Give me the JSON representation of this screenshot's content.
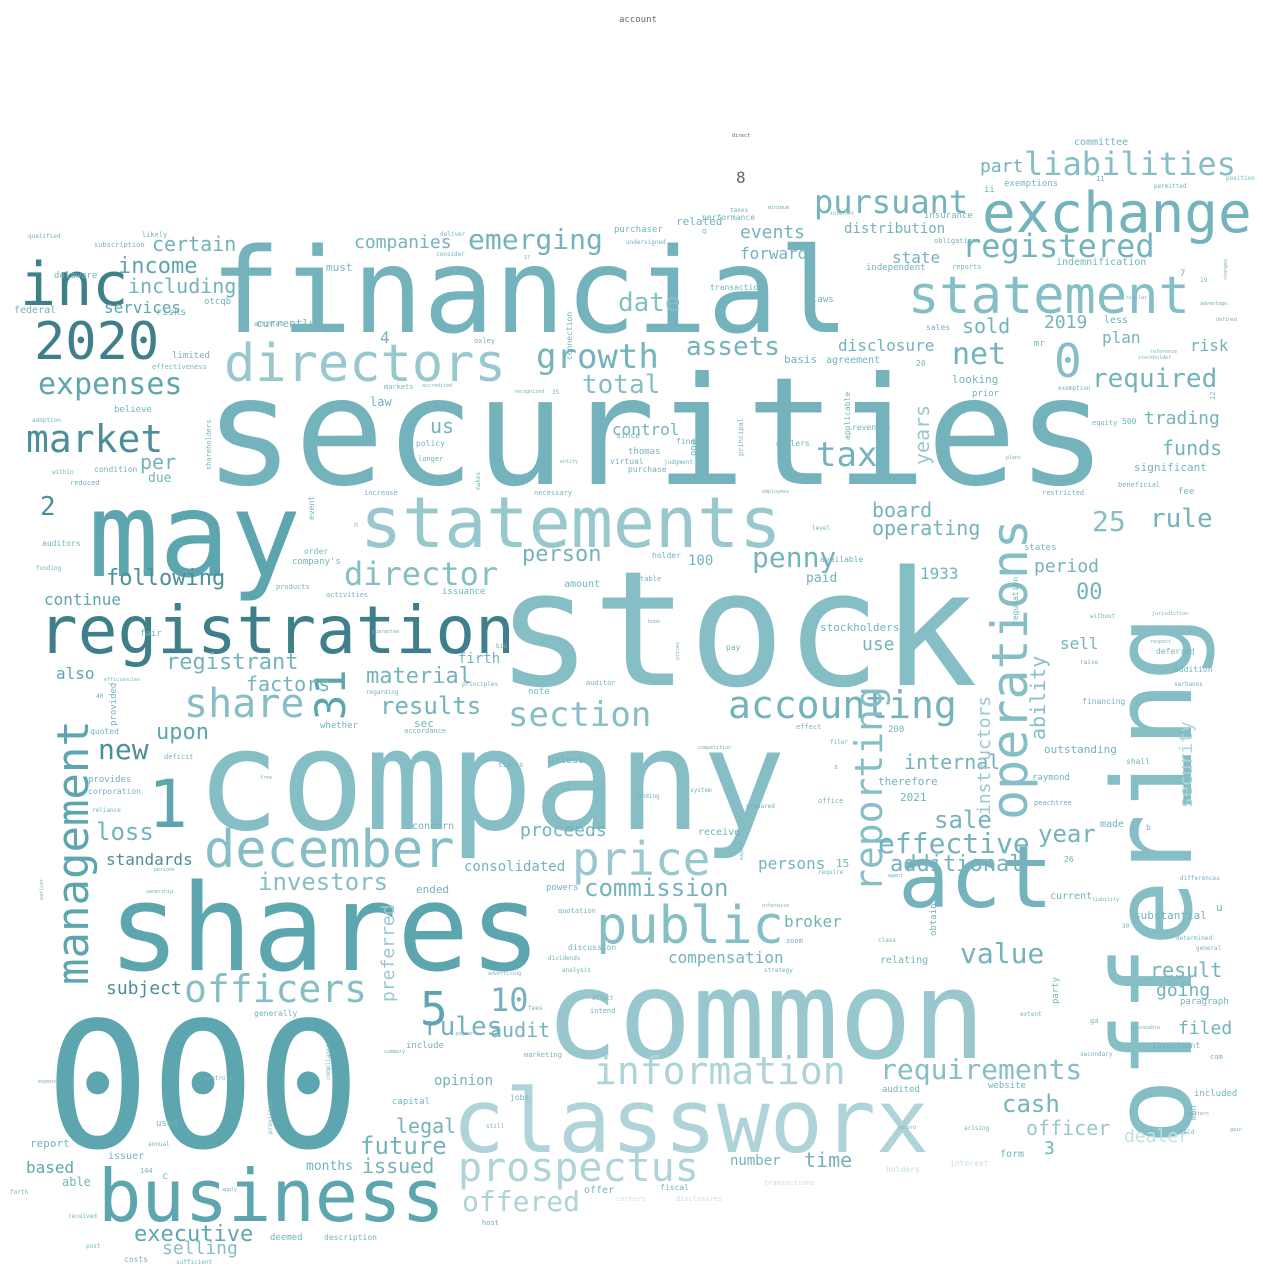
{
  "colors": {
    "background": "#ffffff",
    "palette": [
      "#3f7f8a",
      "#4c8f9b",
      "#5ea6af",
      "#74b3bc",
      "#86bec6",
      "#98c8ce",
      "#aed3d8",
      "#c4dfe2"
    ]
  },
  "words": {
    "securities": "securities",
    "stock": "stock",
    "company": "company",
    "financial": "financial",
    "shares": "shares",
    "common": "common",
    "n000": "000",
    "may": "may",
    "offering": "offering",
    "classworx": "classworx",
    "statements": "statements",
    "registration": "registration",
    "business": "business",
    "act": "act",
    "exchange": "exchange",
    "statement": "statement",
    "directors": "directors",
    "public": "public",
    "december": "december",
    "prospectus": "prospectus",
    "price": "price",
    "information": "information",
    "management": "management",
    "accounting": "accounting",
    "operations": "operations",
    "n2020": "2020",
    "inc": "inc",
    "officers": "officers",
    "reporting": "reporting",
    "liabilities": "liabilities",
    "registered": "registered",
    "growth": "growth",
    "director": "director",
    "market": "market",
    "n1": "1",
    "n31": "31",
    "share": "share",
    "section": "section",
    "investors": "investors",
    "requirements": "requirements",
    "offered": "offered",
    "emerging": "emerging",
    "pursuant": "pursuant",
    "expenses": "expenses",
    "penny": "penny",
    "net": "net",
    "n0": "0",
    "required": "required",
    "assets": "assets",
    "effective": "effective",
    "rules": "rules",
    "tax": "tax",
    "value": "value",
    "rule": "rule",
    "n25": "25",
    "n5": "5",
    "n10": "10",
    "commission": "commission",
    "future": "future",
    "cash": "cash",
    "executive": "executive",
    "date": "date",
    "total": "total",
    "new": "new",
    "income": "income",
    "including": "including",
    "certain": "certain",
    "following": "following",
    "person": "person",
    "registrant": "registrant",
    "material": "material",
    "results": "results",
    "loss": "loss",
    "factors": "factors",
    "upon": "upon",
    "additional": "additional",
    "internal": "internal",
    "sale": "sale",
    "year": "year",
    "years": "years",
    "ability": "ability",
    "instructors": "instructors",
    "security": "security",
    "time": "time",
    "issued": "issued",
    "legal": "legal",
    "audit": "audit",
    "officer": "officer",
    "dealer": "dealer",
    "result": "result",
    "going": "going",
    "filed": "filed",
    "funds": "funds",
    "trading": "trading",
    "risk": "risk",
    "plan": "plan",
    "n2019": "2019",
    "sold": "sold",
    "part": "part",
    "state": "state",
    "disclosure": "disclosure",
    "events": "events",
    "forward": "forward",
    "distribution": "distribution",
    "companies": "companies",
    "board": "board",
    "operating": "operating",
    "n1933": "1933",
    "period": "period",
    "n00": "00",
    "sell": "sell",
    "use": "use",
    "stockholders": "stockholders",
    "firth": "firth",
    "paid": "paid",
    "n100": "100",
    "n2": "2",
    "continue": "continue",
    "also": "also",
    "per": "per",
    "us": "us",
    "control": "control",
    "n3": "3",
    "n4": "4",
    "n8": "8",
    "standards": "standards",
    "subject": "subject",
    "selling": "selling",
    "based": "based",
    "months": "months",
    "number": "number",
    "compensation": "compensation",
    "broker": "broker",
    "proceeds": "proceeds",
    "consolidated": "consolidated",
    "persons": "persons",
    "services": "services",
    "preferred": "preferred",
    "opinion": "opinion",
    "account": "account",
    "committee": "committee",
    "exemptions": "exemptions",
    "indemnification": "indemnification",
    "independent": "independent",
    "insurance": "insurance",
    "obligations": "obligations",
    "reports": "reports",
    "looking": "looking",
    "prior": "prior",
    "mr": "mr",
    "less": "less",
    "agreement": "agreement",
    "basis": "basis",
    "laws": "laws",
    "related": "related",
    "performance": "performance",
    "purchaser": "purchaser",
    "undersigned": "undersigned",
    "must": "must",
    "currently": "currently",
    "federal": "federal",
    "delaware": "delaware",
    "subscription": "subscription",
    "qualified": "qualified",
    "likely": "likely",
    "risks": "risks",
    "limited": "limited",
    "effectiveness": "effectiveness",
    "law": "law",
    "believe": "believe",
    "due": "due",
    "condition": "condition",
    "reduced": "reduced",
    "within": "within",
    "auditors": "auditors",
    "funding": "funding",
    "fair": "fair",
    "provided": "provided",
    "quoted": "quoted",
    "deficit": "deficit",
    "provides": "provides",
    "corporation": "corporation",
    "reliance": "reliance",
    "issuer": "issuer",
    "able": "able",
    "forth": "forth",
    "received": "received",
    "report": "report",
    "used": "used",
    "annual": "annual",
    "costs": "costs",
    "sufficient": "sufficient",
    "post": "post",
    "n144": "144",
    "c": "c",
    "generally": "generally",
    "deemed": "deemed",
    "description": "description",
    "include": "include",
    "capital": "capital",
    "jobs": "jobs",
    "sec": "sec",
    "accordance": "accordance",
    "whether": "whether",
    "regarding": "regarding",
    "note": "note",
    "auditor": "auditor",
    "amount": "amount",
    "issuance": "issuance",
    "activities": "activities",
    "products": "products",
    "order": "order",
    "companys": "company's",
    "event": "event",
    "unless": "unless",
    "stocks": "stocks",
    "concern": "concern",
    "ended": "ended",
    "powers": "powers",
    "quotation": "quotation",
    "discussion": "discussion",
    "dividends": "dividends",
    "analysis": "analysis",
    "marketing": "marketing",
    "holder": "holder",
    "table": "table",
    "receive": "receive",
    "therefore": "therefore",
    "n2021": "2021",
    "raymond": "raymond",
    "peachtree": "peachtree",
    "outstanding": "outstanding",
    "made": "made",
    "current": "current",
    "party": "party",
    "substantial": "substantial",
    "paragraph": "paragraph",
    "investment": "investment",
    "included": "included",
    "website": "website",
    "audited": "audited",
    "holders": "holders",
    "interest": "interest",
    "form": "form",
    "deferred": "deferred",
    "addition": "addition",
    "financing": "financing",
    "shall": "shall",
    "significant": "significant",
    "beneficial": "beneficial",
    "fee": "fee",
    "restricted": "restricted",
    "states": "states",
    "regulation": "regulation",
    "relating": "relating",
    "obtain": "obtain",
    "n15": "15",
    "n26": "26",
    "n200": "200",
    "n20": "20",
    "revenues": "revenues",
    "applicable": "applicable",
    "dealers": "dealers",
    "principal": "principal",
    "one": "one",
    "find": "find",
    "judgment": "judgment",
    "virtual": "virtual",
    "purchase": "purchase",
    "thomas": "thomas",
    "since": "since",
    "transaction": "transaction",
    "connection": "connection",
    "oxley": "oxley",
    "policy": "policy",
    "longer": "longer",
    "necessary": "necessary",
    "increase": "increase",
    "markets": "markets",
    "fiscal": "fiscal",
    "offer": "offer",
    "corners": "corners",
    "disclosures": "disclosures",
    "transactions": "transactions",
    "intend": "intend",
    "affect": "affect",
    "zoom": "zoom",
    "system": "system",
    "ending": "ending",
    "pay": "pay",
    "available": "available",
    "equity": "equity",
    "n500": "500",
    "exemption": "exemption",
    "sarbanes": "sarbanes",
    "u": "u",
    "differences": "differences",
    "determined": "determined",
    "general": "general",
    "com": "com",
    "prepared": "prepared",
    "level": "level",
    "effect": "effect",
    "shareholders": "shareholders",
    "adoption": "adoption",
    "deliver": "deliver",
    "consider": "consider",
    "sales": "sales",
    "entitled": "entitled",
    "taxes": "taxes",
    "minimum": "minimum",
    "internet": "internet",
    "permitted": "permitted",
    "position": "position",
    "ii": "ii",
    "n11": "11",
    "n35": "35",
    "n17": "17",
    "n12": "12",
    "n7": "7",
    "n19": "19",
    "n40": "40",
    "n30": "30",
    "stockholder": "stockholder",
    "reference": "reference",
    "similar": "similar",
    "advantage": "advantage",
    "defined": "defined",
    "changes": "changes",
    "jurisdiction": "jurisdiction",
    "respect": "respect",
    "without": "without",
    "raise": "raise",
    "liability": "liability",
    "reasonable": "reasonable",
    "secondary": "secondary",
    "mon": "mon",
    "matters": "matters",
    "held": "held",
    "gain": "gain",
    "direct": "direct",
    "plans": "plans",
    "employees": "employees",
    "recognized": "recognized",
    "makes": "makes",
    "filer": "filer",
    "office": "office",
    "extent": "extent",
    "agent": "agent",
    "class": "class",
    "strategy": "strategy",
    "fees": "fees",
    "advertising": "advertising",
    "payments": "payments",
    "summary": "summary",
    "controls": "controls",
    "compliance": "compliance",
    "provisions": "provisions",
    "apply": "apply",
    "otherwise": "otherwise",
    "require": "require",
    "expect": "expect",
    "arising": "arising",
    "record": "record",
    "free": "free",
    "still": "still",
    "nonaccredited": "accredited",
    "ownership": "ownership",
    "periods": "periods",
    "efficiencies": "efficiencies",
    "guarantee": "guarantee",
    "principles": "principles",
    "entity": "entity",
    "otcqb": "otcqb",
    "bid": "bid",
    "book": "book",
    "prices": "prices",
    "competition": "competition",
    "expenses2": "expense",
    "earlier": "earlier",
    "host": "host",
    "b": "b",
    "ga": "ga",
    "n": "n",
    "s": "s",
    "q": "q"
  }
}
